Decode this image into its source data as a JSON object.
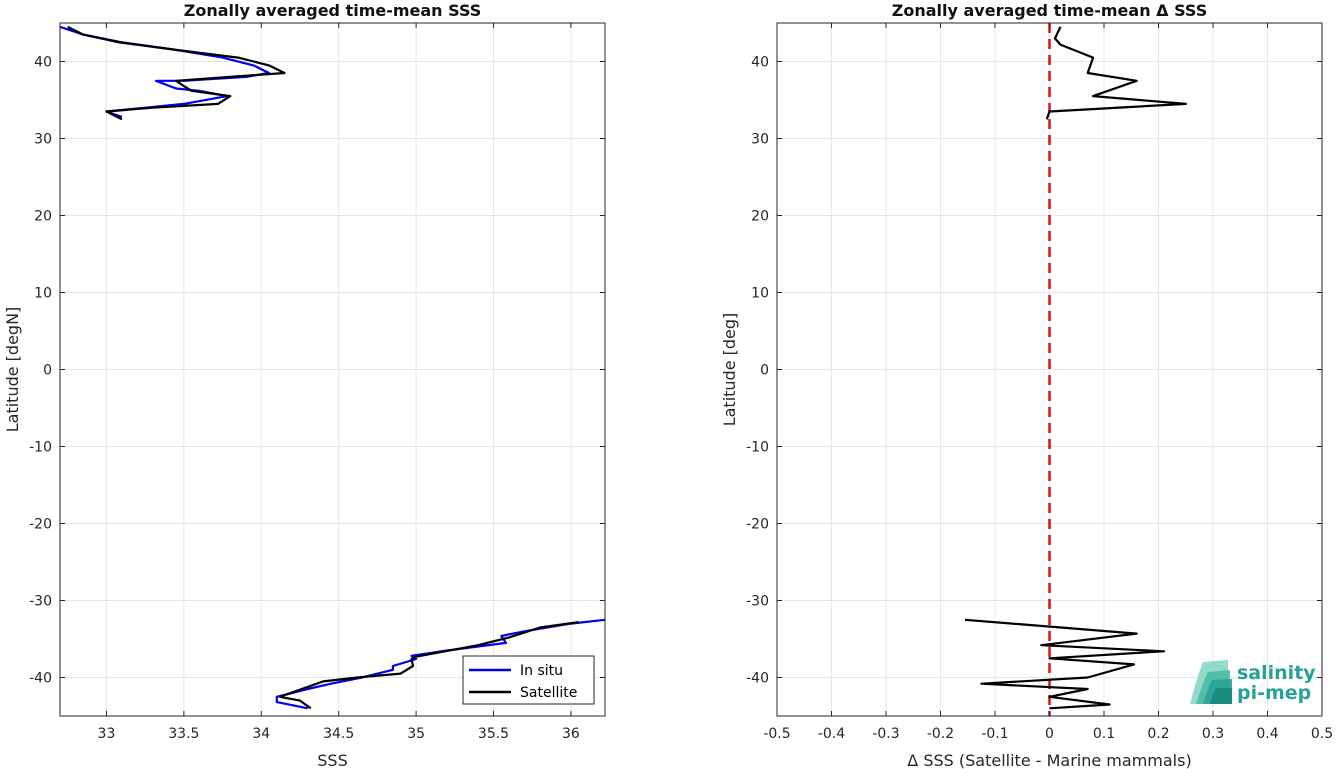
{
  "chart_data": [
    {
      "type": "line",
      "title": "Zonally averaged time-mean SSS",
      "xlabel": "SSS",
      "ylabel": "Latitude [degN]",
      "xlim": [
        32.7,
        36.22
      ],
      "ylim": [
        -45,
        45
      ],
      "xticks": [
        33,
        33.5,
        34,
        34.5,
        35,
        35.5,
        36
      ],
      "xtick_labels": [
        "33",
        "33.5",
        "34",
        "34.5",
        "35",
        "35.5",
        "36"
      ],
      "yticks": [
        -40,
        -30,
        -20,
        -10,
        0,
        10,
        20,
        30,
        40
      ],
      "ytick_labels": [
        "-40",
        "-30",
        "-20",
        "-10",
        "0",
        "10",
        "20",
        "30",
        "40"
      ],
      "grid": true,
      "legend": "bottom-right",
      "series": [
        {
          "name": "In situ",
          "color": "#0000ee",
          "points": [
            [
              32.7,
              44.5
            ],
            [
              32.85,
              43.5
            ],
            [
              33.1,
              42.5
            ],
            [
              33.45,
              41.5
            ],
            [
              33.75,
              40.5
            ],
            [
              33.95,
              39.5
            ],
            [
              34.05,
              38.5
            ],
            [
              33.9,
              38.0
            ],
            [
              33.5,
              37.5
            ],
            [
              33.32,
              37.5
            ],
            [
              33.45,
              36.5
            ],
            [
              33.6,
              36.2
            ],
            [
              33.78,
              35.5
            ],
            [
              33.5,
              34.5
            ],
            [
              33.25,
              34.0
            ],
            [
              33.0,
              33.5
            ],
            [
              33.1,
              32.8
            ]
          ]
        },
        {
          "name": "Satellite",
          "color": "#000000",
          "points": [
            [
              32.75,
              44.5
            ],
            [
              32.85,
              43.5
            ],
            [
              33.08,
              42.5
            ],
            [
              33.45,
              41.5
            ],
            [
              33.85,
              40.5
            ],
            [
              34.05,
              39.5
            ],
            [
              34.15,
              38.5
            ],
            [
              33.8,
              38.0
            ],
            [
              33.45,
              37.5
            ],
            [
              33.5,
              36.8
            ],
            [
              33.55,
              36.2
            ],
            [
              33.8,
              35.5
            ],
            [
              33.72,
              34.5
            ],
            [
              33.3,
              34.0
            ],
            [
              33.0,
              33.5
            ],
            [
              33.1,
              32.5
            ]
          ]
        },
        {
          "name": "In situ",
          "color": "#0000ee",
          "points": [
            [
              36.22,
              -32.5
            ],
            [
              36.0,
              -33.0
            ],
            [
              35.7,
              -34.0
            ],
            [
              35.55,
              -34.6
            ],
            [
              35.58,
              -35.5
            ],
            [
              35.2,
              -36.5
            ],
            [
              34.97,
              -37.2
            ],
            [
              35.0,
              -37.6
            ],
            [
              34.85,
              -38.5
            ],
            [
              34.85,
              -39.0
            ],
            [
              34.65,
              -40.0
            ],
            [
              34.45,
              -40.8
            ],
            [
              34.3,
              -41.5
            ],
            [
              34.1,
              -42.5
            ],
            [
              34.1,
              -43.2
            ],
            [
              34.3,
              -44.0
            ]
          ]
        },
        {
          "name": "Satellite",
          "color": "#000000",
          "points": [
            [
              36.05,
              -32.8
            ],
            [
              35.8,
              -33.5
            ],
            [
              35.6,
              -34.8
            ],
            [
              35.4,
              -35.8
            ],
            [
              35.0,
              -37.3
            ],
            [
              34.97,
              -37.6
            ],
            [
              34.98,
              -38.5
            ],
            [
              34.9,
              -39.5
            ],
            [
              34.62,
              -40.0
            ],
            [
              34.4,
              -40.5
            ],
            [
              34.12,
              -42.5
            ],
            [
              34.25,
              -43.0
            ],
            [
              34.32,
              -44.0
            ]
          ]
        }
      ]
    },
    {
      "type": "line",
      "title": "Zonally averaged time-mean Δ SSS",
      "xlabel": "Δ SSS (Satellite - Marine mammals)",
      "ylabel": "Latitude [deg]",
      "xlim": [
        -0.5,
        0.5
      ],
      "ylim": [
        -45,
        45
      ],
      "xticks": [
        -0.5,
        -0.4,
        -0.3,
        -0.2,
        -0.1,
        0,
        0.1,
        0.2,
        0.3,
        0.4,
        0.5
      ],
      "xtick_labels": [
        "-0.5",
        "-0.4",
        "-0.3",
        "-0.2",
        "-0.1",
        "0",
        "0.1",
        "0.2",
        "0.3",
        "0.4",
        "0.5"
      ],
      "yticks": [
        -40,
        -30,
        -20,
        -10,
        0,
        10,
        20,
        30,
        40
      ],
      "ytick_labels": [
        "-40",
        "-30",
        "-20",
        "-10",
        "0",
        "10",
        "20",
        "30",
        "40"
      ],
      "grid": true,
      "reference_line": {
        "x": 0,
        "color": "#dd1111",
        "style": "dashed"
      },
      "series": [
        {
          "color": "#000000",
          "points": [
            [
              0.02,
              44.5
            ],
            [
              0.01,
              43.0
            ],
            [
              0.02,
              42.2
            ],
            [
              0.08,
              40.5
            ],
            [
              0.07,
              38.5
            ],
            [
              0.16,
              37.5
            ],
            [
              0.08,
              35.5
            ],
            [
              0.25,
              34.5
            ],
            [
              0.0,
              33.5
            ],
            [
              -0.005,
              32.5
            ]
          ]
        },
        {
          "color": "#000000",
          "points": [
            [
              -0.155,
              -32.5
            ],
            [
              0.16,
              -34.3
            ],
            [
              -0.015,
              -35.8
            ],
            [
              0.21,
              -36.6
            ],
            [
              0.0,
              -37.5
            ],
            [
              0.155,
              -38.3
            ],
            [
              0.07,
              -40.0
            ],
            [
              -0.125,
              -40.8
            ],
            [
              0.07,
              -41.5
            ],
            [
              0.0,
              -42.5
            ],
            [
              0.11,
              -43.5
            ],
            [
              0.0,
              -44.0
            ]
          ]
        }
      ]
    }
  ],
  "logo": {
    "line1": "salinity",
    "line2": "pi-mep",
    "color": "#2aa198"
  }
}
